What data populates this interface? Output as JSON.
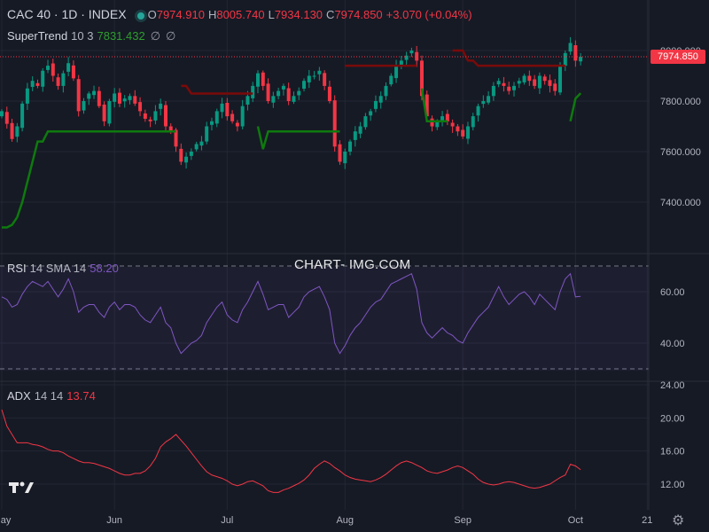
{
  "header": {
    "symbol": "CAC 40 · 1D · INDEX",
    "o_label": "O",
    "o_value": "7974.910",
    "h_label": "H",
    "h_value": "8005.740",
    "l_label": "L",
    "l_value": "7934.130",
    "c_label": "C",
    "c_value": "7974.850",
    "change": "+3.070 (+0.04%)"
  },
  "supertrend": {
    "label": "SuperTrend",
    "params": "10 3",
    "value": "7831.432",
    "icons": [
      "∅",
      "∅"
    ]
  },
  "rsi": {
    "label": "RSI",
    "params": "14 SMA 14",
    "value": "58.20"
  },
  "adx": {
    "label": "ADX",
    "params": "14 14",
    "value": "13.74"
  },
  "price_tag": "7974.850",
  "watermark": "CHART- IMG.COM",
  "colors": {
    "up": "#089981",
    "down": "#f23645",
    "st_up": "#0e7a0e",
    "st_down": "#7a0a0a",
    "rsi": "#7e57c2",
    "adx": "#f23645",
    "bg": "#161a25"
  },
  "chart_data": [
    {
      "type": "candlestick",
      "title": "CAC 40 · 1D · INDEX",
      "y_ticks": [
        "8000.000",
        "7800.000",
        "7600.000",
        "7400.000"
      ],
      "ylim": [
        7220,
        8100
      ],
      "x_ticks": [
        {
          "label": "May",
          "index": 0
        },
        {
          "label": "Jun",
          "index": 22
        },
        {
          "label": "Jul",
          "index": 44
        },
        {
          "label": "Aug",
          "index": 67
        },
        {
          "label": "Sep",
          "index": 90
        },
        {
          "label": "Oct",
          "index": 112
        },
        {
          "label": "21",
          "index": 126
        }
      ],
      "close": [
        7760,
        7710,
        7650,
        7700,
        7790,
        7850,
        7880,
        7860,
        7920,
        7940,
        7900,
        7860,
        7910,
        7950,
        7890,
        7760,
        7800,
        7830,
        7840,
        7780,
        7720,
        7800,
        7830,
        7790,
        7810,
        7820,
        7790,
        7760,
        7730,
        7720,
        7760,
        7790,
        7700,
        7680,
        7620,
        7560,
        7580,
        7600,
        7630,
        7640,
        7700,
        7720,
        7760,
        7790,
        7740,
        7720,
        7700,
        7780,
        7820,
        7860,
        7910,
        7860,
        7800,
        7820,
        7840,
        7860,
        7800,
        7820,
        7840,
        7880,
        7900,
        7900,
        7920,
        7860,
        7800,
        7620,
        7560,
        7600,
        7640,
        7680,
        7700,
        7740,
        7760,
        7800,
        7820,
        7860,
        7900,
        7940,
        7960,
        7980,
        8000,
        7960,
        7820,
        7740,
        7700,
        7720,
        7740,
        7720,
        7700,
        7680,
        7660,
        7700,
        7740,
        7780,
        7800,
        7820,
        7860,
        7880,
        7860,
        7840,
        7860,
        7880,
        7900,
        7880,
        7860,
        7900,
        7880,
        7860,
        7840,
        7940,
        7990,
        8030,
        7960,
        7975
      ],
      "supertrend": {
        "segments": [
          {
            "color": "up",
            "from": 0,
            "to": 34,
            "values": [
              7300,
              7300,
              7310,
              7340,
              7400,
              7480,
              7560,
              7640,
              7640,
              7680,
              7680,
              7680,
              7680,
              7680,
              7680,
              7680,
              7680,
              7680,
              7680,
              7680,
              7680,
              7680,
              7680,
              7680,
              7680,
              7680,
              7680,
              7680,
              7680,
              7680,
              7680,
              7680,
              7680,
              7680,
              7680
            ]
          },
          {
            "color": "down",
            "from": 35,
            "to": 49,
            "values": [
              7860,
              7860,
              7830,
              7830,
              7830,
              7830,
              7830,
              7830,
              7830,
              7830,
              7830,
              7830,
              7830,
              7830,
              7830
            ]
          },
          {
            "color": "up",
            "from": 50,
            "to": 66,
            "values": [
              7700,
              7610,
              7680,
              7680,
              7680,
              7680,
              7680,
              7680,
              7680,
              7680,
              7680,
              7680,
              7680,
              7680,
              7680,
              7680,
              7680
            ]
          },
          {
            "color": "down",
            "from": 67,
            "to": 81,
            "values": [
              7940,
              7940,
              7940,
              7940,
              7940,
              7940,
              7940,
              7940,
              7940,
              7940,
              7940,
              7940,
              7940,
              7940,
              7940
            ]
          },
          {
            "color": "up",
            "from": 82,
            "to": 87,
            "values": [
              7850,
              7720,
              7720,
              7720,
              7720,
              7720
            ]
          },
          {
            "color": "down",
            "from": 88,
            "to": 110,
            "values": [
              8000,
              8000,
              8000,
              7960,
              7960,
              7940,
              7940,
              7940,
              7940,
              7940,
              7940,
              7940,
              7940,
              7940,
              7940,
              7940,
              7940,
              7940,
              7940,
              7940,
              7940,
              7940,
              7940
            ]
          },
          {
            "color": "up",
            "from": 111,
            "to": 113,
            "values": [
              7720,
              7810,
              7831
            ]
          }
        ]
      }
    },
    {
      "type": "line",
      "name": "RSI 14 SMA 14",
      "y_ticks": [
        "60.00",
        "40.00"
      ],
      "ylim": [
        28,
        72
      ],
      "bands": [
        70,
        30
      ],
      "values": [
        58,
        57,
        54,
        55,
        59,
        62,
        64,
        63,
        62,
        64,
        61,
        58,
        61,
        65,
        60,
        52,
        54,
        55,
        55,
        52,
        50,
        54,
        56,
        53,
        55,
        55,
        54,
        51,
        49,
        48,
        51,
        54,
        48,
        46,
        40,
        36,
        38,
        40,
        41,
        43,
        48,
        51,
        54,
        56,
        51,
        49,
        48,
        53,
        56,
        60,
        64,
        59,
        53,
        54,
        55,
        55,
        50,
        52,
        54,
        58,
        60,
        61,
        62,
        58,
        53,
        40,
        36,
        39,
        43,
        46,
        48,
        51,
        54,
        56,
        57,
        60,
        63,
        64,
        65,
        66,
        67,
        61,
        48,
        44,
        42,
        44,
        46,
        44,
        43,
        41,
        40,
        44,
        47,
        50,
        52,
        54,
        58,
        62,
        58,
        55,
        57,
        59,
        60,
        58,
        55,
        59,
        57,
        55,
        53,
        60,
        65,
        67,
        58,
        58.2
      ]
    },
    {
      "type": "line",
      "name": "ADX 14 14",
      "y_ticks": [
        "24.00",
        "20.00",
        "16.00",
        "12.00"
      ],
      "ylim": [
        10,
        24.5
      ],
      "values": [
        21,
        19,
        18,
        17,
        17,
        17,
        16.8,
        16.7,
        16.5,
        16.2,
        16,
        16,
        15.8,
        15.4,
        15.1,
        14.8,
        14.6,
        14.6,
        14.5,
        14.3,
        14.1,
        13.9,
        13.6,
        13.3,
        13.1,
        13.1,
        13.3,
        13.3,
        13.6,
        14.2,
        15.1,
        16.5,
        17.1,
        17.5,
        18,
        17.3,
        16.6,
        15.8,
        15,
        14.2,
        13.5,
        13.1,
        12.9,
        12.7,
        12.4,
        12,
        11.8,
        12,
        12.3,
        12.4,
        12.1,
        11.8,
        11.2,
        11,
        11,
        11.3,
        11.5,
        11.8,
        12.1,
        12.5,
        13.1,
        13.9,
        14.4,
        14.8,
        14.5,
        14,
        13.6,
        13.1,
        12.8,
        12.6,
        12.5,
        12.4,
        12.3,
        12.5,
        12.8,
        13.2,
        13.7,
        14.2,
        14.6,
        14.8,
        14.6,
        14.3,
        14,
        13.6,
        13.4,
        13.3,
        13.5,
        13.7,
        14,
        14.2,
        14,
        13.6,
        13.2,
        12.6,
        12.2,
        12,
        11.9,
        12,
        12.2,
        12.3,
        12.2,
        12,
        11.8,
        11.6,
        11.5,
        11.6,
        11.8,
        12,
        12.4,
        12.8,
        13.1,
        14.4,
        14.2,
        13.74
      ]
    }
  ]
}
